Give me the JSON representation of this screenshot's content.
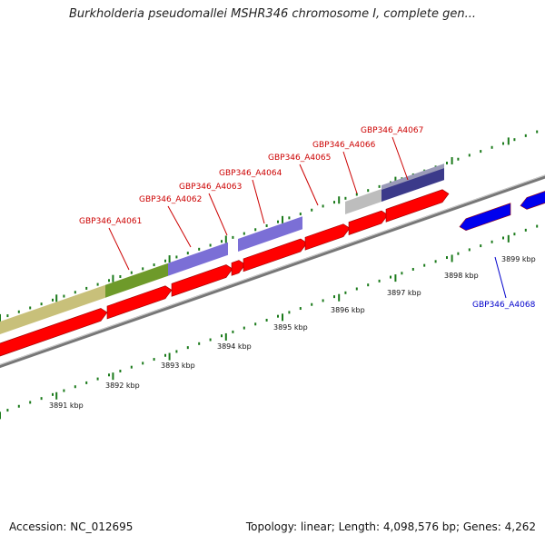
{
  "title": "Burkholderia pseudomallei MSHR346 chromosome I, complete gen...",
  "footer": {
    "accession": "Accession: NC_012695",
    "summary": "Topology: linear; Length: 4,098,576 bp; Genes: 4,262"
  },
  "colors": {
    "forward_gene": "#ff0000",
    "reverse_gene": "#0000ee",
    "label_forward": "#cc0000",
    "label_reverse": "#0000cc",
    "ruler_tick": "#1a7a1a",
    "backbone": "#888888",
    "track_olive": "#c8c07a",
    "track_green": "#6e9a2a",
    "track_purple": "#7b6fd6",
    "track_grey": "#bdbdbd",
    "track_navy": "#3b3a8a"
  },
  "kbp_ticks": [
    "3891 kbp",
    "3892 kbp",
    "3893 kbp",
    "3894 kbp",
    "3895 kbp",
    "3896 kbp",
    "3897 kbp",
    "3898 kbp",
    "3899 kbp"
  ],
  "gene_labels": [
    {
      "text": "GBP346_A4061",
      "strand": "forward"
    },
    {
      "text": "GBP346_A4062",
      "strand": "forward"
    },
    {
      "text": "GBP346_A4063",
      "strand": "forward"
    },
    {
      "text": "GBP346_A4064",
      "strand": "forward"
    },
    {
      "text": "GBP346_A4065",
      "strand": "forward"
    },
    {
      "text": "GBP346_A4066",
      "strand": "forward"
    },
    {
      "text": "GBP346_A4067",
      "strand": "forward"
    },
    {
      "text": "GBP346_A4068",
      "strand": "reverse"
    }
  ]
}
